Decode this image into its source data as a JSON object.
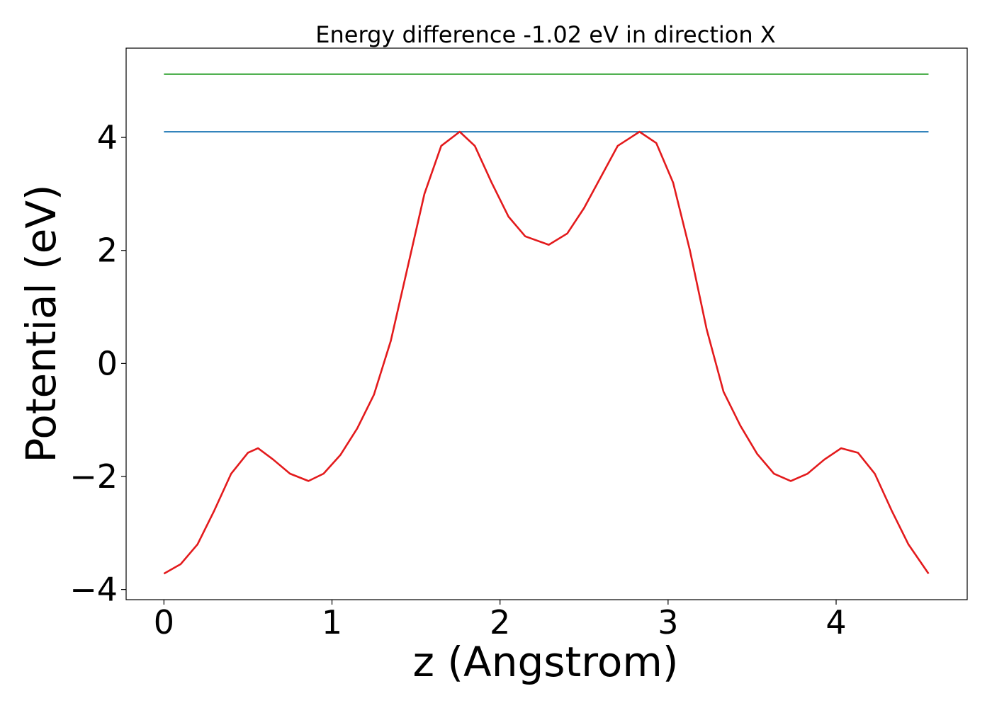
{
  "chart_data": {
    "type": "line",
    "title": "Energy difference -1.02 eV in direction X",
    "xlabel": "z (Angstrom)",
    "ylabel": "Potential (eV)",
    "xlim": [
      -0.225,
      4.78
    ],
    "ylim": [
      -4.18,
      5.58
    ],
    "xticks": [
      0,
      1,
      2,
      3,
      4
    ],
    "yticks": [
      -4,
      -2,
      0,
      2,
      4
    ],
    "xtick_labels": [
      "0",
      "1",
      "2",
      "3",
      "4"
    ],
    "ytick_labels": [
      "−4",
      "−2",
      "0",
      "2",
      "4"
    ],
    "grid": false,
    "series": [
      {
        "color": "#2ca02c",
        "x": [
          0,
          4.55
        ],
        "y": [
          5.12,
          5.12
        ]
      },
      {
        "color": "#1f77b4",
        "x": [
          0,
          4.55
        ],
        "y": [
          4.1,
          4.1
        ]
      },
      {
        "color": "#e31a1c",
        "x": [
          0.0,
          0.1,
          0.2,
          0.3,
          0.4,
          0.5,
          0.56,
          0.65,
          0.75,
          0.86,
          0.95,
          1.05,
          1.15,
          1.25,
          1.35,
          1.45,
          1.55,
          1.65,
          1.76,
          1.85,
          1.95,
          2.05,
          2.15,
          2.29,
          2.4,
          2.5,
          2.6,
          2.7,
          2.83,
          2.93,
          3.03,
          3.13,
          3.23,
          3.33,
          3.43,
          3.53,
          3.63,
          3.73,
          3.83,
          3.93,
          4.03,
          4.13,
          4.23,
          4.33,
          4.43,
          4.55
        ],
        "y": [
          -3.72,
          -3.55,
          -3.2,
          -2.6,
          -1.95,
          -1.58,
          -1.5,
          -1.7,
          -1.95,
          -2.08,
          -1.95,
          -1.62,
          -1.15,
          -0.55,
          0.4,
          1.7,
          3.0,
          3.85,
          4.1,
          3.85,
          3.2,
          2.6,
          2.25,
          2.1,
          2.3,
          2.75,
          3.3,
          3.85,
          4.1,
          3.9,
          3.2,
          2.0,
          0.6,
          -0.5,
          -1.1,
          -1.6,
          -1.95,
          -2.08,
          -1.95,
          -1.7,
          -1.5,
          -1.58,
          -1.95,
          -2.6,
          -3.2,
          -3.72
        ]
      }
    ]
  }
}
